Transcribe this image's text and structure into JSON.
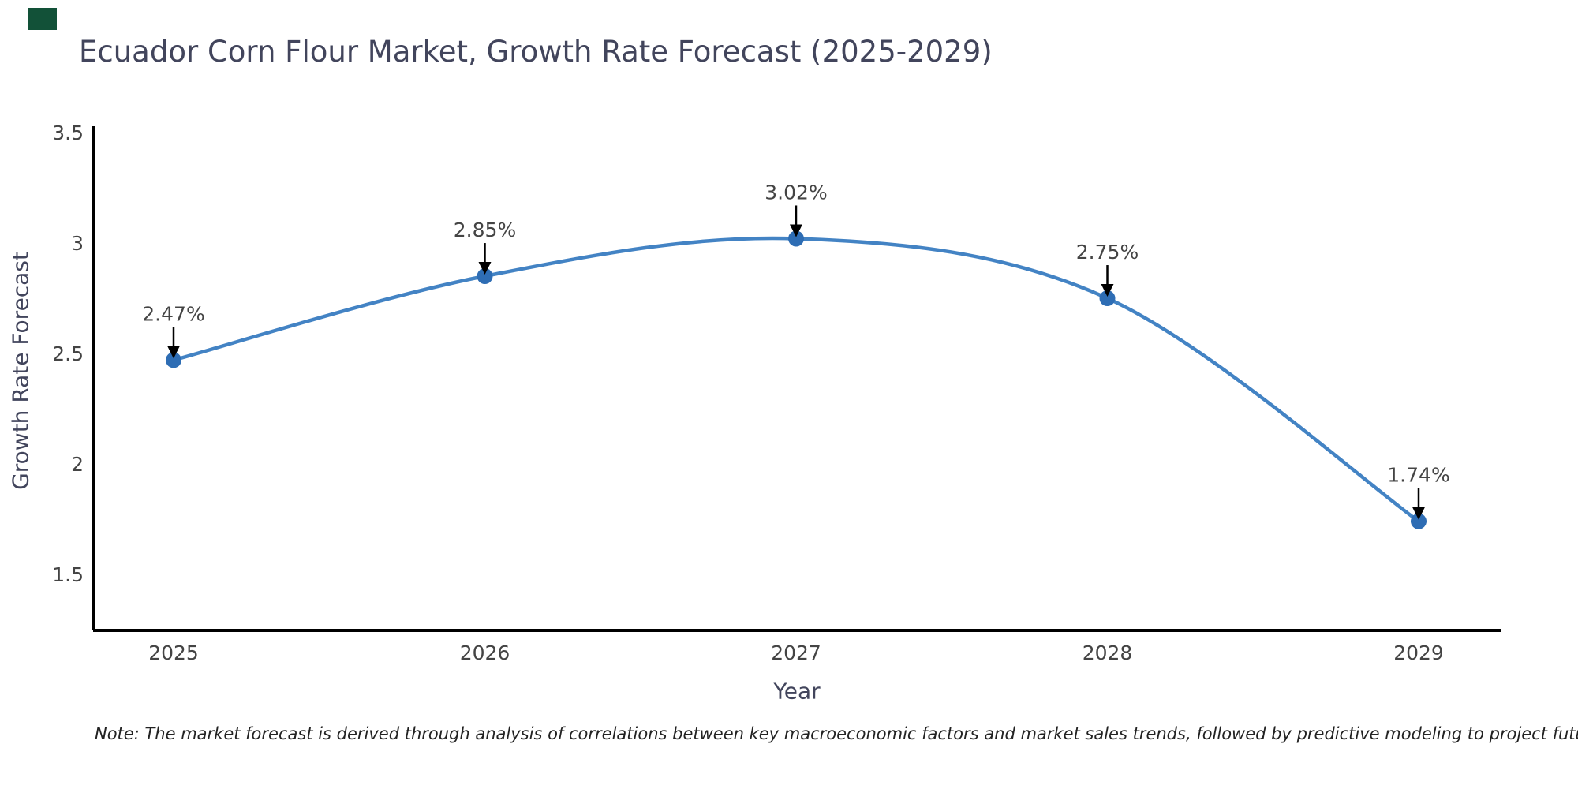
{
  "page": {
    "corner_mark_color": "#125138",
    "background_color": "#ffffff"
  },
  "colors": {
    "title_text": "#42455C",
    "axis_title_text": "#42455C",
    "tick_text": "#444444",
    "data_label_text": "#444444",
    "axis_line": "#000000",
    "note_text": "#222222",
    "line": "#4383C4",
    "marker": "#2E6DB4",
    "arrow": "#000000"
  },
  "footnote": {
    "text": "Note: The market forecast is derived through analysis of correlations between key macroeconomic factors and market sales trends, followed by predictive modeling to project future sales"
  },
  "chart_data": {
    "type": "line",
    "title": "Ecuador Corn Flour Market, Growth Rate Forecast (2025-2029)",
    "xlabel": "Year",
    "ylabel": "Growth Rate Forecast",
    "categories": [
      "2025",
      "2026",
      "2027",
      "2028",
      "2029"
    ],
    "values": [
      2.47,
      2.85,
      3.02,
      2.75,
      1.74
    ],
    "data_labels": [
      "2.47%",
      "2.85%",
      "3.02%",
      "2.75%",
      "1.74%"
    ],
    "yticks": [
      3.5,
      3,
      2.5,
      2,
      1.5
    ],
    "ytick_labels": [
      "3.5",
      "3",
      "2.5",
      "2",
      "1.5"
    ],
    "ylim": [
      1.246,
      3.529
    ],
    "line_shape": "spline",
    "grid": false,
    "legend_position": "none",
    "annotations": "black arrows pointing from each data label down to its marker"
  }
}
